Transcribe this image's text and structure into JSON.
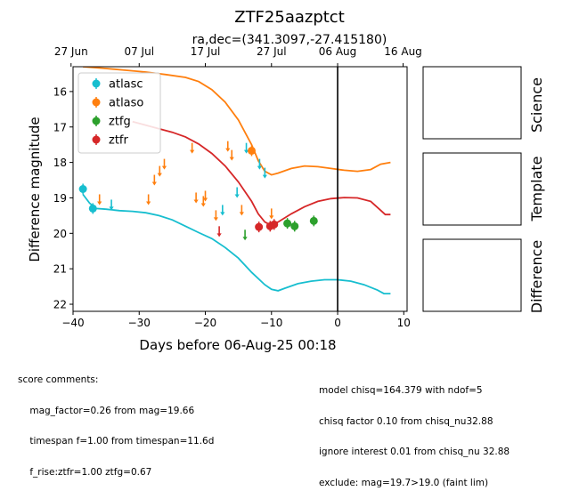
{
  "chart_data": {
    "type": "scatter",
    "title": "ZTF25aazptct",
    "subtitle": "ra,dec=(341.3097,-27.415180)",
    "xlabel": "Days before 06-Aug-25 00:18",
    "ylabel": "Difference magnitude",
    "xlim": [
      -40,
      10.5
    ],
    "ylim": [
      22.2,
      15.3
    ],
    "y_inverted": true,
    "x_ticks": [
      -40,
      -30,
      -20,
      -10,
      0,
      10
    ],
    "y_ticks": [
      16,
      17,
      18,
      19,
      20,
      21,
      22
    ],
    "top_axis_ticks": [
      {
        "x": -40.3,
        "label": "27 Jun"
      },
      {
        "x": -30.0,
        "label": "07 Jul"
      },
      {
        "x": -20.0,
        "label": "17 Jul"
      },
      {
        "x": -10.0,
        "label": "27 Jul"
      },
      {
        "x": 0.0,
        "label": "06 Aug"
      },
      {
        "x": 9.9,
        "label": "16 Aug"
      }
    ],
    "vline_x": 0,
    "legend_position": "upper-left",
    "series": [
      {
        "name": "atlasc",
        "color": "#17becf",
        "detections": [
          [
            -38.5,
            18.75
          ],
          [
            -37.0,
            19.3
          ]
        ],
        "upper_limits": [
          [
            -34.2,
            19.2
          ],
          [
            -17.4,
            19.35
          ],
          [
            -15.2,
            18.85
          ],
          [
            -13.8,
            17.6
          ],
          [
            -11.8,
            18.05
          ],
          [
            -11.0,
            18.3
          ]
        ],
        "model": [
          [
            -38.5,
            18.9
          ],
          [
            -37.5,
            19.15
          ],
          [
            -36.5,
            19.3
          ],
          [
            -35,
            19.32
          ],
          [
            -33,
            19.36
          ],
          [
            -31,
            19.38
          ],
          [
            -29,
            19.42
          ],
          [
            -27,
            19.5
          ],
          [
            -25,
            19.62
          ],
          [
            -23,
            19.8
          ],
          [
            -21,
            19.98
          ],
          [
            -19,
            20.15
          ],
          [
            -17,
            20.4
          ],
          [
            -15,
            20.7
          ],
          [
            -13,
            21.1
          ],
          [
            -11,
            21.45
          ],
          [
            -10,
            21.58
          ],
          [
            -9,
            21.62
          ],
          [
            -8,
            21.55
          ],
          [
            -6,
            21.42
          ],
          [
            -4,
            21.35
          ],
          [
            -2,
            21.31
          ],
          [
            0,
            21.31
          ],
          [
            2,
            21.35
          ],
          [
            4,
            21.45
          ],
          [
            6,
            21.6
          ],
          [
            7,
            21.7
          ],
          [
            8,
            21.7
          ]
        ]
      },
      {
        "name": "atlaso",
        "color": "#ff7f0e",
        "detections": [
          [
            -13.0,
            17.67
          ]
        ],
        "upper_limits": [
          [
            -36.0,
            19.05
          ],
          [
            -28.6,
            19.05
          ],
          [
            -27.7,
            18.5
          ],
          [
            -26.9,
            18.25
          ],
          [
            -26.2,
            18.05
          ],
          [
            -22.0,
            17.6
          ],
          [
            -21.4,
            19.0
          ],
          [
            -20.3,
            19.1
          ],
          [
            -20.0,
            18.95
          ],
          [
            -18.4,
            19.5
          ],
          [
            -16.6,
            17.55
          ],
          [
            -16.0,
            17.8
          ],
          [
            -14.5,
            19.35
          ],
          [
            -10.0,
            19.45
          ]
        ],
        "model": [
          [
            -38.5,
            15.3
          ],
          [
            -35,
            15.35
          ],
          [
            -32,
            15.4
          ],
          [
            -29,
            15.45
          ],
          [
            -26,
            15.52
          ],
          [
            -23,
            15.6
          ],
          [
            -21,
            15.72
          ],
          [
            -19,
            15.95
          ],
          [
            -17,
            16.3
          ],
          [
            -15,
            16.8
          ],
          [
            -13,
            17.5
          ],
          [
            -12,
            17.95
          ],
          [
            -11,
            18.25
          ],
          [
            -10,
            18.35
          ],
          [
            -9,
            18.3
          ],
          [
            -7,
            18.17
          ],
          [
            -5,
            18.1
          ],
          [
            -3,
            18.12
          ],
          [
            -1,
            18.17
          ],
          [
            1,
            18.22
          ],
          [
            3,
            18.25
          ],
          [
            5,
            18.2
          ],
          [
            6.5,
            18.05
          ],
          [
            8,
            18.0
          ]
        ]
      },
      {
        "name": "ztfg",
        "color": "#2ca02c",
        "detections": [
          [
            -7.6,
            19.72
          ],
          [
            -6.5,
            19.8
          ],
          [
            -3.6,
            19.65
          ]
        ],
        "upper_limits": [
          [
            -14.0,
            20.05
          ]
        ],
        "model": []
      },
      {
        "name": "ztfr",
        "color": "#d62728",
        "detections": [
          [
            -11.9,
            19.82
          ],
          [
            -10.2,
            19.8
          ],
          [
            -9.6,
            19.75
          ]
        ],
        "upper_limits": [
          [
            -17.9,
            19.95
          ]
        ],
        "model": [
          [
            -31,
            16.85
          ],
          [
            -29,
            16.95
          ],
          [
            -27,
            17.05
          ],
          [
            -25,
            17.15
          ],
          [
            -23,
            17.28
          ],
          [
            -21,
            17.48
          ],
          [
            -19,
            17.75
          ],
          [
            -17,
            18.1
          ],
          [
            -15,
            18.55
          ],
          [
            -13,
            19.1
          ],
          [
            -12,
            19.45
          ],
          [
            -11,
            19.68
          ],
          [
            -10,
            19.78
          ],
          [
            -9,
            19.68
          ],
          [
            -7,
            19.45
          ],
          [
            -5,
            19.25
          ],
          [
            -3,
            19.1
          ],
          [
            -1,
            19.02
          ],
          [
            1,
            18.99
          ],
          [
            3,
            19.0
          ],
          [
            5,
            19.1
          ],
          [
            6.5,
            19.35
          ],
          [
            7.2,
            19.47
          ],
          [
            8,
            19.47
          ]
        ]
      }
    ]
  },
  "panels": {
    "science_label": "Science",
    "template_label": "Template",
    "difference_label": "Difference"
  },
  "comments": {
    "left_lines": [
      "score comments:",
      "    mag_factor=0.26 from mag=19.66",
      "    timespan f=1.00 from timespan=11.6d",
      "    f_rise:ztfr=1.00 ztfg=0.67"
    ],
    "right_lines": [
      "model chisq=164.379 with ndof=5",
      "chisq factor 0.10 from chisq_nu32.88",
      "ignore interest 0.01 from chisq_nu 32.88",
      "exclude: mag=19.7>19.0 (faint lim)"
    ]
  }
}
